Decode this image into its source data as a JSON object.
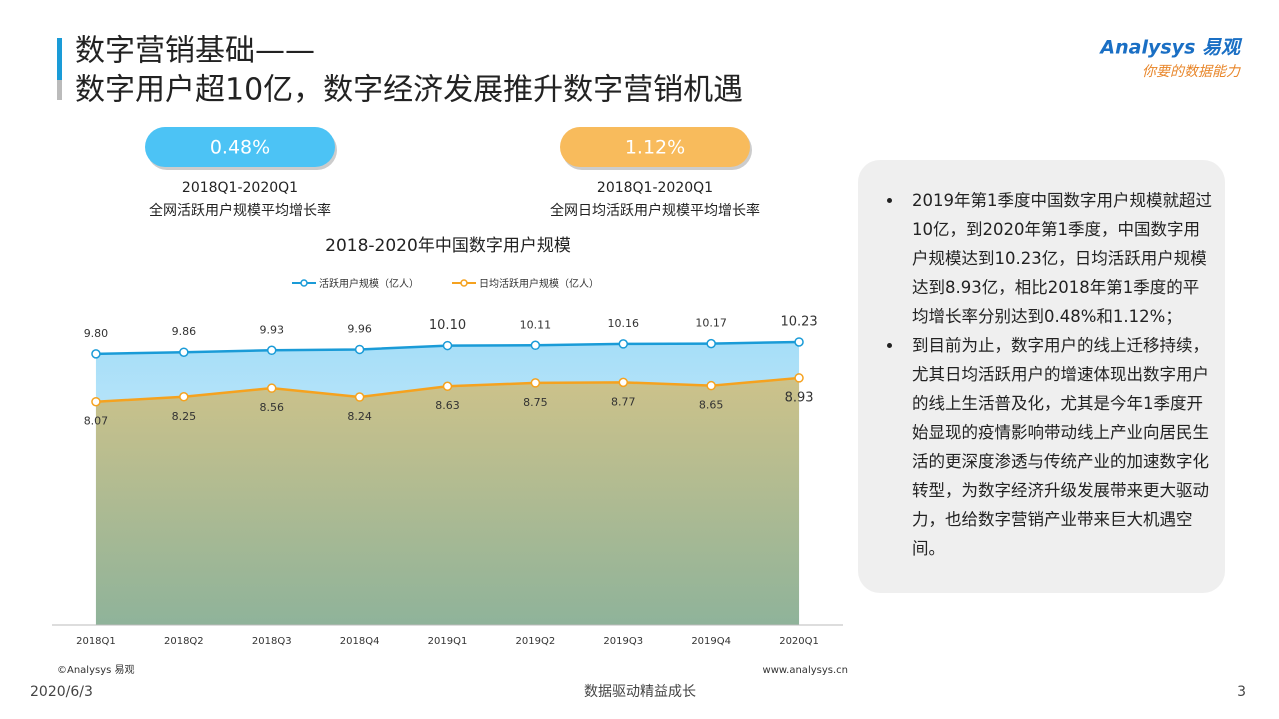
{
  "header": {
    "title_line1": "数字营销基础——",
    "title_line2": "数字用户超10亿，数字经济发展推升数字营销机遇",
    "logo_brand": "Analysys 易观",
    "logo_slogan": "你要的数据能力"
  },
  "kpis": [
    {
      "value": "0.48%",
      "period": "2018Q1-2020Q1",
      "label": "全网活跃用户规模平均增长率",
      "color": "#4cc3f5"
    },
    {
      "value": "1.12%",
      "period": "2018Q1-2020Q1",
      "label": "全网日均活跃用户规模平均增长率",
      "color": "#f8bb5c"
    }
  ],
  "chart_data": {
    "type": "area",
    "title": "2018-2020年中国数字用户规模",
    "categories": [
      "2018Q1",
      "2018Q2",
      "2018Q3",
      "2018Q4",
      "2019Q1",
      "2019Q2",
      "2019Q3",
      "2019Q4",
      "2020Q1"
    ],
    "series": [
      {
        "name": "活跃用户规模（亿人）",
        "color": "#1a9bd7",
        "values": [
          9.8,
          9.86,
          9.93,
          9.96,
          10.1,
          10.11,
          10.16,
          10.17,
          10.23
        ],
        "value_labels": [
          "9.80",
          "9.86",
          "9.93",
          "9.96",
          "10.10",
          "10.11",
          "10.16",
          "10.17",
          "10.23"
        ]
      },
      {
        "name": "日均活跃用户规模（亿人）",
        "color": "#f5a21f",
        "values": [
          8.07,
          8.25,
          8.56,
          8.24,
          8.63,
          8.75,
          8.77,
          8.65,
          8.93
        ],
        "value_labels": [
          "8.07",
          "8.25",
          "8.56",
          "8.24",
          "8.63",
          "8.75",
          "8.77",
          "8.65",
          "8.93"
        ]
      }
    ],
    "ylim": [
      0,
      12
    ],
    "legend": "top"
  },
  "notes": {
    "bullets": [
      "2019年第1季度中国数字用户规模就超过10亿，到2020年第1季度，中国数字用户规模达到10.23亿，日均活跃用户规模达到8.93亿，相比2018年第1季度的平均增长率分别达到0.48%和1.12%；",
      "到目前为止，数字用户的线上迁移持续，尤其日均活跃用户的增速体现出数字用户的线上生活普及化，尤其是今年1季度开始显现的疫情影响带动线上产业向居民生活的更深度渗透与传统产业的加速数字化转型，为数字经济升级发展带来更大驱动力，也给数字营销产业带来巨大机遇空间。"
    ]
  },
  "footer": {
    "copyright": "©Analysys 易观",
    "url": "www.analysys.cn",
    "date": "2020/6/3",
    "slogan": "数据驱动精益成长",
    "page": 3
  }
}
